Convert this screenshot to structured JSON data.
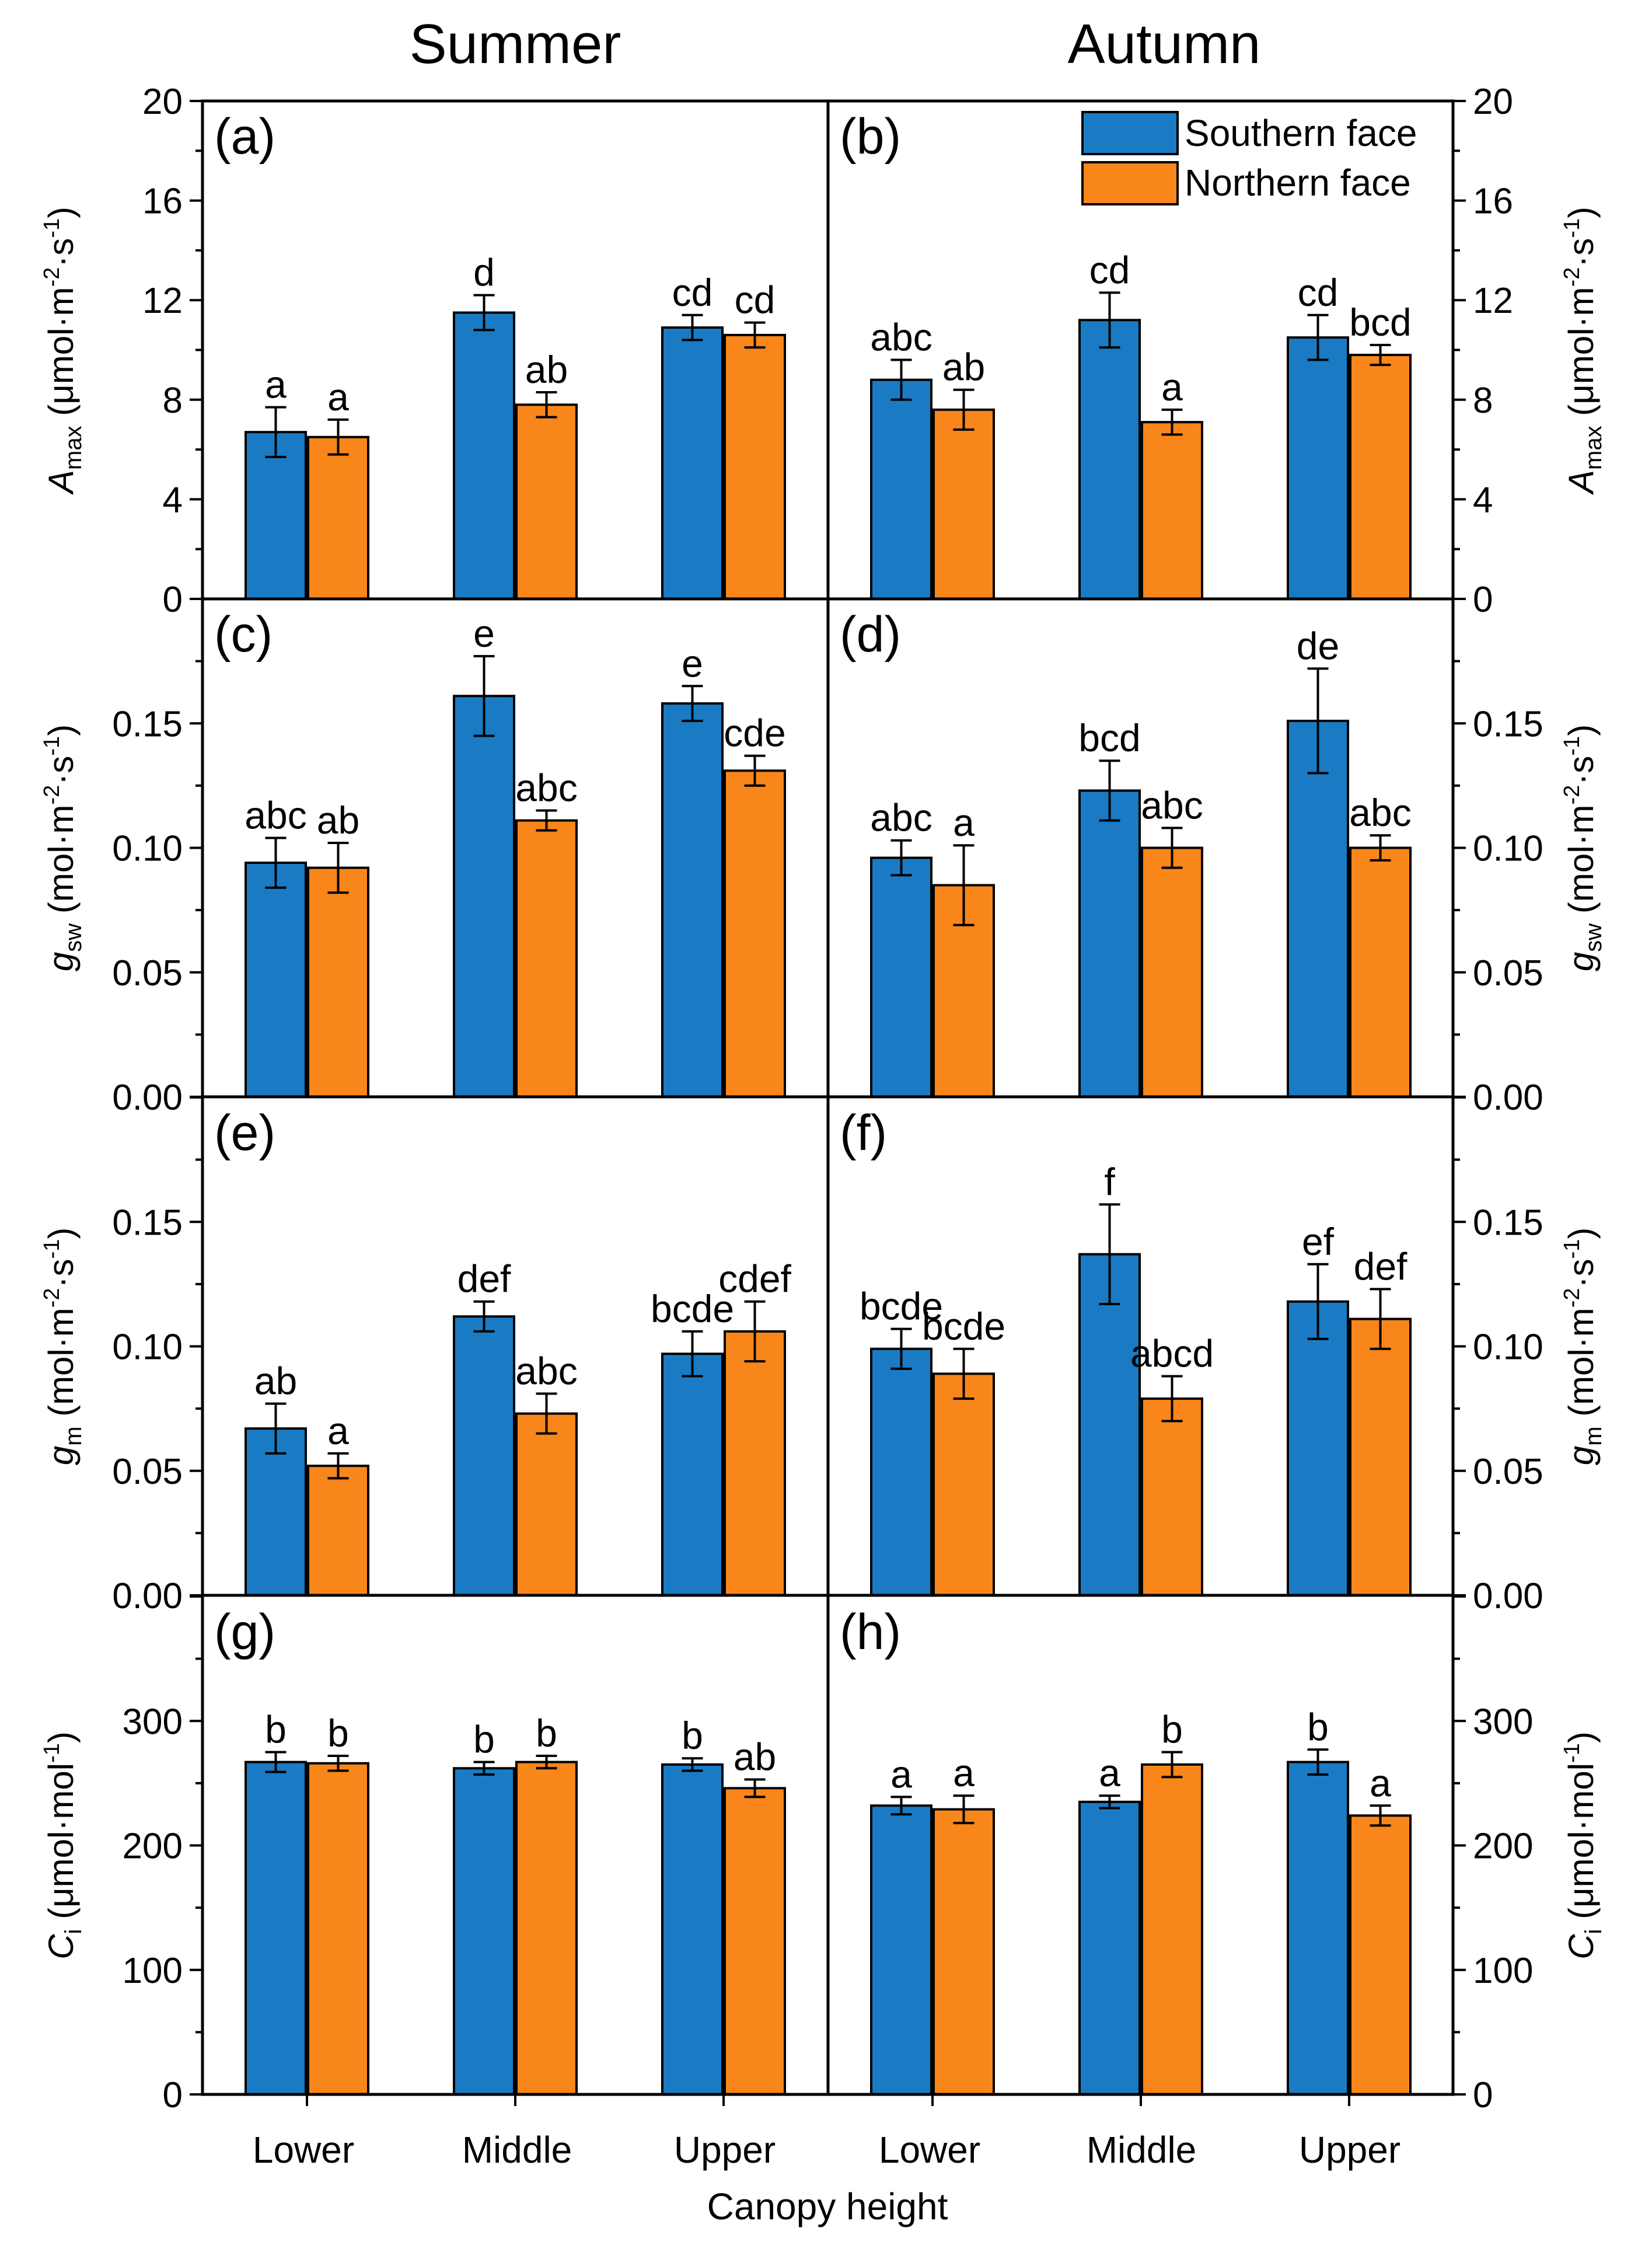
{
  "chart_data": {
    "type": "bar",
    "colors": {
      "southern": "#1a7bc4",
      "northern": "#f8861a"
    },
    "seasons": [
      "Summer",
      "Autumn"
    ],
    "categories": [
      "Lower",
      "Middle",
      "Upper"
    ],
    "xlabel": "Canopy height",
    "legend": [
      "Southern face",
      "Northern face"
    ],
    "rows": [
      {
        "ylabel": {
          "main": "A",
          "sub": "max",
          "unit_pre": " (μmol·m",
          "sup1": "-2",
          "unit_mid": "·s",
          "sup2": "-1",
          "unit_post": ")"
        },
        "ylim": [
          0,
          20
        ],
        "ticks": [
          "0",
          "4",
          "8",
          "12",
          "16",
          "20"
        ],
        "panels": [
          {
            "label": "(a)",
            "southern": [
              6.7,
              11.5,
              10.9
            ],
            "southern_err": [
              1.0,
              0.7,
              0.5
            ],
            "northern": [
              6.5,
              7.8,
              10.6
            ],
            "northern_err": [
              0.7,
              0.5,
              0.5
            ],
            "southern_letters": [
              "a",
              "d",
              "cd"
            ],
            "northern_letters": [
              "a",
              "ab",
              "cd"
            ]
          },
          {
            "label": "(b)",
            "southern": [
              8.8,
              11.2,
              10.5
            ],
            "southern_err": [
              0.8,
              1.1,
              0.9
            ],
            "northern": [
              7.6,
              7.1,
              9.8
            ],
            "northern_err": [
              0.8,
              0.5,
              0.4
            ],
            "southern_letters": [
              "abc",
              "cd",
              "cd"
            ],
            "northern_letters": [
              "ab",
              "a",
              "bcd"
            ]
          }
        ]
      },
      {
        "ylabel": {
          "main": "g",
          "sub": "sw",
          "unit_pre": " (mol·m",
          "sup1": "-2",
          "unit_mid": "·s",
          "sup2": "-1",
          "unit_post": ")"
        },
        "ylim": [
          0,
          0.2
        ],
        "ticks": [
          "0.00",
          "0.05",
          "0.10",
          "0.15",
          ""
        ],
        "panels": [
          {
            "label": "(c)",
            "southern": [
              0.094,
              0.161,
              0.158
            ],
            "southern_err": [
              0.01,
              0.016,
              0.007
            ],
            "northern": [
              0.092,
              0.111,
              0.131
            ],
            "northern_err": [
              0.01,
              0.004,
              0.006
            ],
            "southern_letters": [
              "abc",
              "e",
              "e"
            ],
            "northern_letters": [
              "ab",
              "abc",
              "cde"
            ]
          },
          {
            "label": "(d)",
            "southern": [
              0.096,
              0.123,
              0.151
            ],
            "southern_err": [
              0.007,
              0.012,
              0.021
            ],
            "northern": [
              0.085,
              0.1,
              0.1
            ],
            "northern_err": [
              0.016,
              0.008,
              0.005
            ],
            "southern_letters": [
              "abc",
              "bcd",
              "de"
            ],
            "northern_letters": [
              "a",
              "abc",
              "abc"
            ]
          }
        ]
      },
      {
        "ylabel": {
          "main": "g",
          "sub": "m",
          "unit_pre": " (mol·m",
          "sup1": "-2",
          "unit_mid": "·s",
          "sup2": "-1",
          "unit_post": ")"
        },
        "ylim": [
          0,
          0.2
        ],
        "ticks": [
          "0.00",
          "0.05",
          "0.10",
          "0.15",
          ""
        ],
        "panels": [
          {
            "label": "(e)",
            "southern": [
              0.067,
              0.112,
              0.097
            ],
            "southern_err": [
              0.01,
              0.006,
              0.009
            ],
            "northern": [
              0.052,
              0.073,
              0.106
            ],
            "northern_err": [
              0.005,
              0.008,
              0.012
            ],
            "southern_letters": [
              "ab",
              "def",
              "bcde"
            ],
            "northern_letters": [
              "a",
              "abc",
              "cdef"
            ]
          },
          {
            "label": "(f)",
            "southern": [
              0.099,
              0.137,
              0.118
            ],
            "southern_err": [
              0.008,
              0.02,
              0.015
            ],
            "northern": [
              0.089,
              0.079,
              0.111
            ],
            "northern_err": [
              0.01,
              0.009,
              0.012
            ],
            "southern_letters": [
              "bcde",
              "f",
              "ef"
            ],
            "northern_letters": [
              "bcde",
              "abcd",
              "def"
            ]
          }
        ]
      },
      {
        "ylabel": {
          "main": "C",
          "sub": "i",
          "unit_pre": " (μmol·mol",
          "sup1": "-1",
          "unit_mid": ")",
          "sup2": "",
          "unit_post": ""
        },
        "ylim": [
          0,
          400
        ],
        "ticks": [
          "0",
          "100",
          "200",
          "300",
          ""
        ],
        "panels": [
          {
            "label": "(g)",
            "southern": [
              267,
              262,
              265
            ],
            "southern_err": [
              8,
              5,
              5
            ],
            "northern": [
              266,
              267,
              246
            ],
            "northern_err": [
              6,
              5,
              7
            ],
            "southern_letters": [
              "b",
              "b",
              "b"
            ],
            "northern_letters": [
              "b",
              "b",
              "ab"
            ]
          },
          {
            "label": "(h)",
            "southern": [
              232,
              235,
              267
            ],
            "southern_err": [
              7,
              5,
              10
            ],
            "northern": [
              229,
              265,
              224
            ],
            "northern_err": [
              11,
              10,
              8
            ],
            "southern_letters": [
              "a",
              "a",
              "b"
            ],
            "northern_letters": [
              "a",
              "b",
              "a"
            ]
          }
        ]
      }
    ]
  }
}
